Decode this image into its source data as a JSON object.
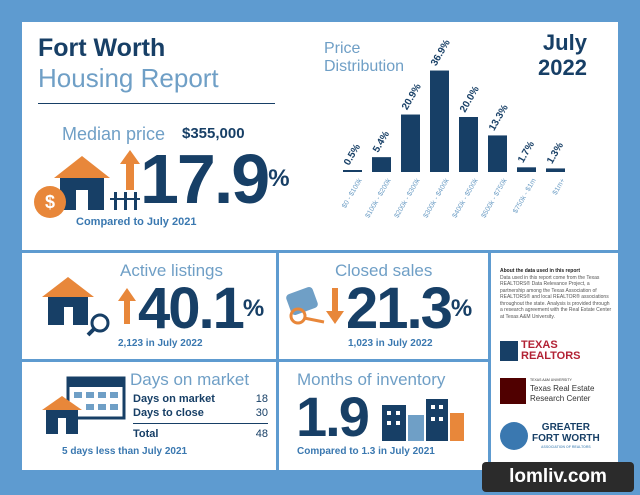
{
  "header": {
    "title_line1": "Fort Worth",
    "title_line2": "Housing Report",
    "period_line1": "July",
    "period_line2": "2022"
  },
  "median": {
    "label": "Median price",
    "value": "$355,000",
    "change": "17.9",
    "unit": "%",
    "comparison": "Compared to July 2021",
    "icons": [
      "house-icon",
      "dollar-icon",
      "arrow-up-icon"
    ]
  },
  "chart_data": {
    "type": "bar",
    "title": "Price Distribution",
    "categories": [
      "$0 - $100k",
      "$100k - $200k",
      "$200k - $300k",
      "$300k - $400k",
      "$400k - $500k",
      "$500k - $750k",
      "$750k - $1m",
      "$1m+"
    ],
    "values": [
      0.5,
      5.4,
      20.9,
      36.9,
      20.0,
      13.3,
      1.7,
      1.3
    ],
    "labels": [
      "0.5%",
      "5.4%",
      "20.9%",
      "36.9%",
      "20.0%",
      "13.3%",
      "1.7%",
      "1.3%"
    ],
    "ylim": [
      0,
      40
    ],
    "grid": false,
    "color": "#173f66"
  },
  "active": {
    "label": "Active listings",
    "change": "40.1",
    "unit": "%",
    "detail": "2,123 in July 2022"
  },
  "closed": {
    "label": "Closed sales",
    "change": "21.3",
    "unit": "%",
    "detail": "1,023 in July 2022"
  },
  "days": {
    "label": "Days on market",
    "rows": [
      {
        "name": "Days on market",
        "value": "18"
      },
      {
        "name": "Days to close",
        "value": "30"
      },
      {
        "name": "Total",
        "value": "48"
      }
    ],
    "comparison": "5 days less than July 2021"
  },
  "inventory": {
    "label": "Months of inventory",
    "value": "1.9",
    "comparison": "Compared to 1.3 in July 2021"
  },
  "about": {
    "heading": "About the data used in this report",
    "body": "Data used in this report come from the Texas REALTORS® Data Relevance Project, a partnership among the Texas Association of REALTORS® and local REALTOR® associations throughout the state. Analysis is provided through a research agreement with the Real Estate Center at Texas A&M University."
  },
  "logos": {
    "texas_realtors": "TEXAS REALTORS",
    "tamu_small": "TEXAS A&M UNIVERSITY",
    "tamu_line1": "Texas Real Estate",
    "tamu_line2": "Research Center",
    "gfw_line1": "GREATER",
    "gfw_line2": "FORT WORTH",
    "gfw_line3": "ASSOCIATION OF REALTORS"
  },
  "watermark": "lomliv.com",
  "colors": {
    "navy": "#173f66",
    "light_blue": "#6f9fc6",
    "orange": "#e8873a",
    "frame": "#5e9bd0"
  }
}
